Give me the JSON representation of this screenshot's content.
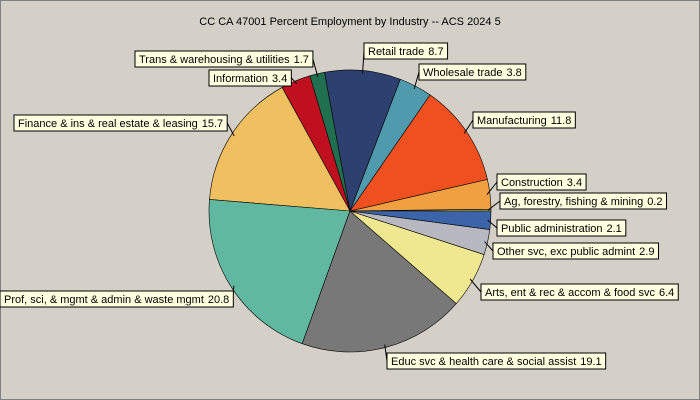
{
  "chart_data": {
    "type": "pie",
    "title": "CC CA 47001 Percent Employment by Industry -- ACS 2024 5",
    "categories": [
      "Ag, forestry, fishing & mining",
      "Construction",
      "Manufacturing",
      "Wholesale trade",
      "Retail trade",
      "Trans & warehousing & utilities",
      "Information",
      "Finance & ins & real estate & leasing",
      "Prof, sci, & mgmt & admin & waste mgmt",
      "Educ svc & health care & social assist",
      "Arts, ent & rec & accom & food svc",
      "Other svc, exc public admint",
      "Public administration"
    ],
    "values": [
      0.2,
      3.4,
      11.8,
      3.8,
      8.7,
      1.7,
      3.4,
      15.7,
      20.8,
      19.1,
      6.4,
      2.9,
      2.1
    ],
    "colors": [
      "#d8c848",
      "#f0a040",
      "#f05020",
      "#4f9aad",
      "#2e4070",
      "#207050",
      "#c01020",
      "#f0c060",
      "#60b8a0",
      "#787878",
      "#f0e890",
      "#b8b8c0",
      "#3c64a8"
    ]
  }
}
